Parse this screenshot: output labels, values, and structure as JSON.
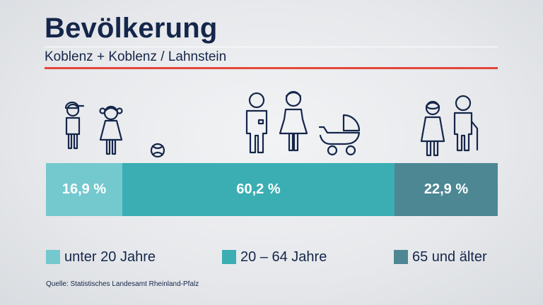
{
  "header": {
    "title": "Bevölkerung",
    "subtitle": "Koblenz + Koblenz / Lahnstein"
  },
  "colors": {
    "accent_red": "#e2473a",
    "navy": "#15264a",
    "seg_young": "#74c9ce",
    "seg_adult": "#3aaeb3",
    "seg_senior": "#4d8794"
  },
  "icons": {
    "young": [
      "boy-with-cap-icon",
      "girl-with-pigtails-icon",
      "ball-icon"
    ],
    "adult": [
      "man-icon",
      "woman-icon",
      "baby-stroller-icon"
    ],
    "senior": [
      "elderly-woman-icon",
      "elderly-man-with-cane-icon"
    ]
  },
  "chart_data": {
    "type": "bar",
    "title": "Bevölkerung",
    "subtitle": "Koblenz + Koblenz / Lahnstein",
    "categories": [
      "unter 20 Jahre",
      "20 – 64 Jahre",
      "65 und älter"
    ],
    "values": [
      16.9,
      60.2,
      22.9
    ],
    "unit": "%",
    "stacked": true,
    "labels": [
      "16,9 %",
      "60,2 %",
      "22,9 %"
    ],
    "legend_position": "bottom",
    "grid": false
  },
  "legend": [
    "unter 20 Jahre",
    "20 – 64 Jahre",
    "65 und älter"
  ],
  "source": "Quelle: Statistisches Landesamt Rheinland-Pfalz"
}
